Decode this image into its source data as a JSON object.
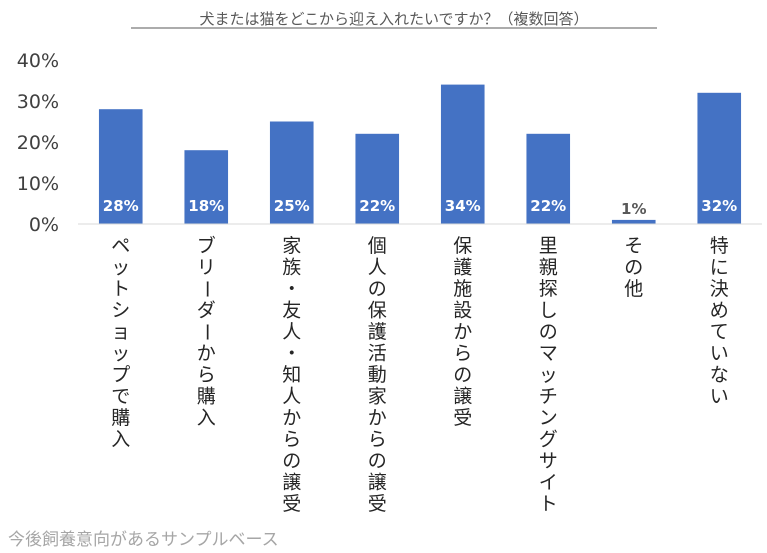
{
  "chart_data": {
    "type": "bar",
    "title": "犬または猫をどこから迎え入れたいですか？（複数回答）",
    "categories": [
      "ペットショップで購入",
      "ブリーダーから購入",
      "家族・友人・知人からの譲受",
      "個人の保護活動家からの譲受",
      "保護施設からの譲受",
      "里親探しのマッチングサイト",
      "その他",
      "特に決めていない"
    ],
    "values": [
      28,
      18,
      25,
      22,
      34,
      22,
      1,
      32
    ],
    "data_labels": [
      "28%",
      "18%",
      "25%",
      "22%",
      "34%",
      "22%",
      "1%",
      "32%"
    ],
    "ylim": [
      0,
      40
    ],
    "yticks": [
      "0%",
      "10%",
      "20%",
      "30%",
      "40%"
    ],
    "grid": false,
    "bar_color": "#4472C4",
    "label_color_inside": "#ffffff",
    "label_color_outside": "#595959"
  },
  "footnote": "今後飼養意向があるサンプルベース"
}
